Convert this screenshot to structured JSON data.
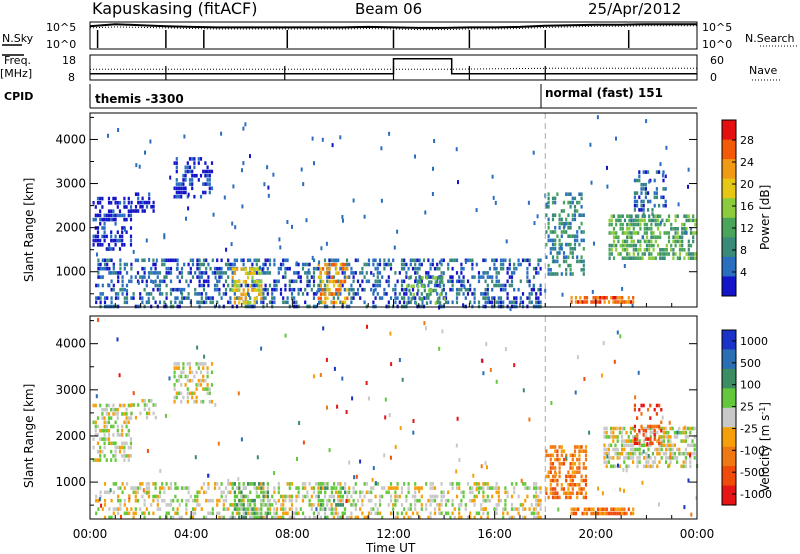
{
  "header": {
    "station": "Kapuskasing (fitACF)",
    "beam": "Beam 06",
    "date": "25/Apr/2012"
  },
  "top_panels": {
    "nsky_label": "N.Sky",
    "nsky_ticks": [
      "10^5",
      "10^0"
    ],
    "nsearch_label": "N.Search",
    "nsearch_ticks": [
      "10^5",
      "10^0"
    ],
    "freq_label_1": "Freq.",
    "freq_label_2": "[MHz]",
    "freq_ticks": [
      "18",
      "8"
    ],
    "nave_label": "Nave",
    "nave_ticks": [
      "60",
      "0"
    ],
    "cpid_label": "CPID",
    "cpid_modes": [
      {
        "name": "themis -3300",
        "start_h": 0.0
      },
      {
        "name": "normal (fast) 151",
        "start_h": 18.0
      }
    ]
  },
  "x_axis": {
    "title": "Time UT",
    "ticks": [
      "00:00",
      "04:00",
      "08:00",
      "12:00",
      "16:00",
      "20:00",
      "00:00"
    ],
    "range_h": [
      0,
      24
    ]
  },
  "colors": {
    "power": [
      "#1414c8",
      "#2a6ebf",
      "#3a8a78",
      "#4aa55a",
      "#8ccc3c",
      "#e6c814",
      "#f09a14",
      "#f25a0a",
      "#e60f0f"
    ],
    "velocity": [
      "#1a32c8",
      "#2a6eb4",
      "#3c8c64",
      "#64c83c",
      "#c8c8c8",
      "#f5a00a",
      "#f07814",
      "#f04b0a",
      "#e61414"
    ],
    "mode_divider": "#aaaaaa"
  },
  "chart_data": [
    {
      "type": "line",
      "panel": "N.Sky / N.Search",
      "x": [
        0,
        0.5,
        1,
        2,
        3,
        4,
        5,
        6,
        7,
        8,
        9,
        10,
        11,
        12,
        13,
        14,
        15,
        16,
        17,
        18,
        19,
        20,
        21,
        22,
        23,
        24
      ],
      "series": [
        {
          "name": "N.Sky",
          "values": [
            4.2,
            4.4,
            4.6,
            4.4,
            4.2,
            4.1,
            4.0,
            4.0,
            4.0,
            4.0,
            4.0,
            4.0,
            4.1,
            4.0,
            3.9,
            3.9,
            4.0,
            4.0,
            4.1,
            4.3,
            4.4,
            4.5,
            4.5,
            4.6,
            4.6,
            4.6
          ]
        },
        {
          "name": "N.Search",
          "values": [
            3.9,
            4.0,
            4.1,
            4.0,
            3.9,
            3.8,
            3.7,
            3.7,
            3.7,
            3.7,
            3.7,
            3.7,
            3.8,
            3.7,
            3.6,
            3.6,
            3.7,
            3.7,
            3.8,
            4.0,
            4.1,
            4.2,
            4.2,
            4.3,
            4.3,
            4.3
          ]
        }
      ],
      "y_range": [
        0,
        5
      ]
    },
    {
      "type": "line",
      "panel": "Freq. / Nave",
      "x": [
        0,
        12,
        12,
        14.3,
        14.3,
        18,
        24
      ],
      "series": [
        {
          "name": "Freq.",
          "values": [
            10.5,
            10.5,
            16.5,
            16.5,
            10.5,
            10.5,
            10.5
          ]
        },
        {
          "name": "Nave",
          "values": [
            26,
            26,
            26,
            26,
            26,
            28,
            28
          ]
        }
      ],
      "y_range_freq": [
        8,
        18
      ],
      "y_range_nave": [
        0,
        60
      ]
    },
    {
      "type": "heatmap",
      "panel": "Power",
      "ylabel": "Slant Range [km]",
      "yticks": [
        1000,
        2000,
        3000,
        4000
      ],
      "ylim": [
        200,
        4600
      ],
      "colorbar_label": "Power [dB]",
      "colorbar_ticks": [
        4,
        8,
        12,
        16,
        20,
        24,
        28
      ],
      "regions": [
        {
          "t0": 0.1,
          "t1": 1.6,
          "r0": 1500,
          "r1": 2700,
          "level": 0,
          "density": 0.5
        },
        {
          "t0": 1.6,
          "t1": 2.6,
          "r0": 2400,
          "r1": 2800,
          "level": 0,
          "density": 0.4
        },
        {
          "t0": 3.3,
          "t1": 4.8,
          "r0": 2700,
          "r1": 3600,
          "level": 0,
          "density": 0.45
        },
        {
          "t0": 0.2,
          "t1": 17.8,
          "r0": 250,
          "r1": 1300,
          "level": 1,
          "density": 0.4
        },
        {
          "t0": 5.6,
          "t1": 6.8,
          "r0": 250,
          "r1": 1100,
          "level": 5,
          "density": 0.5
        },
        {
          "t0": 9.0,
          "t1": 10.2,
          "r0": 250,
          "r1": 1200,
          "level": 6,
          "density": 0.45
        },
        {
          "t0": 12.5,
          "t1": 14.0,
          "r0": 300,
          "r1": 900,
          "level": 3,
          "density": 0.4
        },
        {
          "t0": 18.0,
          "t1": 19.5,
          "r0": 900,
          "r1": 2800,
          "level": 2,
          "density": 0.45
        },
        {
          "t0": 19.0,
          "t1": 21.5,
          "r0": 300,
          "r1": 450,
          "level": 7,
          "density": 0.85
        },
        {
          "t0": 20.5,
          "t1": 23.9,
          "r0": 1300,
          "r1": 2300,
          "level": 3,
          "density": 0.6
        },
        {
          "t0": 21.5,
          "t1": 22.8,
          "r0": 2300,
          "r1": 3300,
          "level": 1,
          "density": 0.35
        }
      ]
    },
    {
      "type": "heatmap",
      "panel": "Velocity",
      "ylabel": "Slant Range [km]",
      "yticks": [
        1000,
        2000,
        3000,
        4000
      ],
      "ylim": [
        200,
        4600
      ],
      "colorbar_label": "Velocity [m s^-1]",
      "colorbar_ticks": [
        1000,
        500,
        100,
        25,
        -25,
        -100,
        -500,
        -1000
      ],
      "regions": [
        {
          "t0": 0.1,
          "t1": 1.6,
          "r0": 1500,
          "r1": 2700,
          "level": 4,
          "density": 0.5
        },
        {
          "t0": 1.6,
          "t1": 2.6,
          "r0": 2400,
          "r1": 2800,
          "level": 4,
          "density": 0.4
        },
        {
          "t0": 3.3,
          "t1": 4.8,
          "r0": 2700,
          "r1": 3600,
          "level": 4,
          "density": 0.45
        },
        {
          "t0": 0.2,
          "t1": 17.8,
          "r0": 250,
          "r1": 1000,
          "level": 4,
          "density": 0.4
        },
        {
          "t0": 5.6,
          "t1": 7.0,
          "r0": 250,
          "r1": 1000,
          "level": 3,
          "density": 0.5
        },
        {
          "t0": 9.0,
          "t1": 10.2,
          "r0": 250,
          "r1": 1000,
          "level": 3,
          "density": 0.45
        },
        {
          "t0": 18.0,
          "t1": 19.6,
          "r0": 700,
          "r1": 1800,
          "level": 6,
          "density": 0.55
        },
        {
          "t0": 19.0,
          "t1": 21.5,
          "r0": 300,
          "r1": 450,
          "level": 6,
          "density": 0.85
        },
        {
          "t0": 20.3,
          "t1": 23.9,
          "r0": 1300,
          "r1": 2200,
          "level": 4,
          "density": 0.6
        },
        {
          "t0": 21.5,
          "t1": 22.6,
          "r0": 1800,
          "r1": 2700,
          "level": 7,
          "density": 0.35
        }
      ]
    }
  ]
}
